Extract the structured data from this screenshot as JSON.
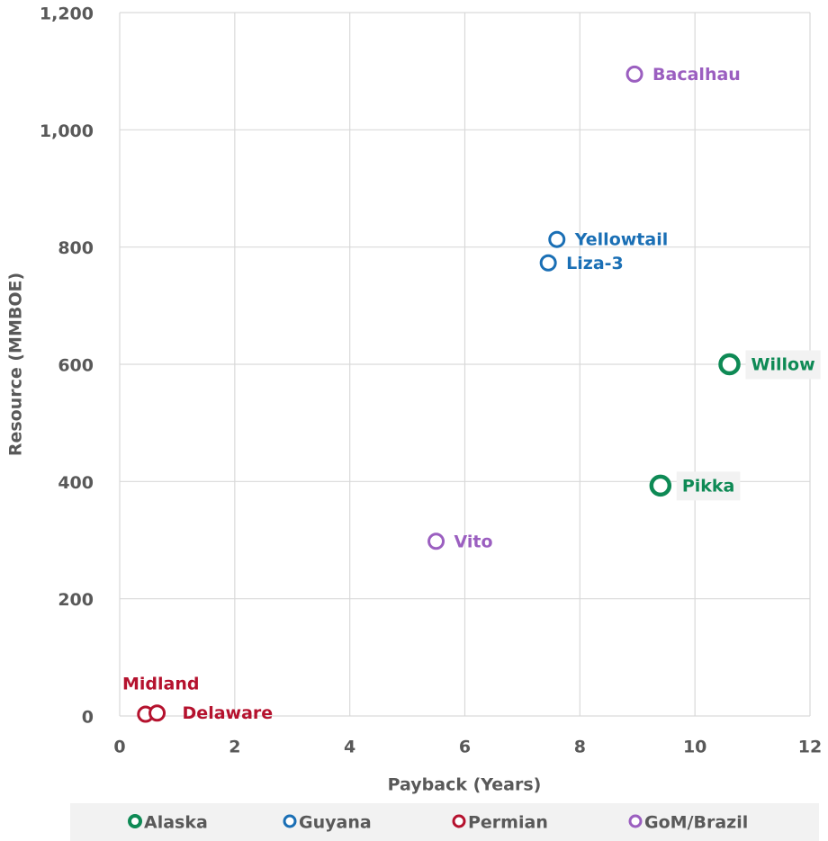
{
  "chart_data": {
    "type": "scatter",
    "x_label": "Payback (Years)",
    "y_label": "Resource (MMBOE)",
    "xlim": [
      0,
      12
    ],
    "xticks": [
      0,
      2,
      4,
      6,
      8,
      10,
      12
    ],
    "ylim": [
      0,
      1200
    ],
    "yticks": [
      0,
      200,
      400,
      600,
      800,
      {
        "value": 1000,
        "label": "1,000"
      },
      {
        "value": 1200,
        "label": "1,200"
      }
    ],
    "grid": true,
    "legend": "bottom",
    "series": [
      {
        "name": "Alaska",
        "color": "#0e8a55",
        "x": [
          10.6,
          9.4
        ],
        "values": [
          600,
          393
        ],
        "labels": [
          "Willow",
          "Pikka"
        ]
      },
      {
        "name": "Guyana",
        "color": "#1a6fb5",
        "x": [
          7.6,
          7.45
        ],
        "values": [
          813,
          773
        ],
        "labels": [
          "Yellowtail",
          "Liza-3"
        ]
      },
      {
        "name": "Permian",
        "color": "#b5122e",
        "x": [
          0.45,
          0.65
        ],
        "values": [
          3,
          5
        ],
        "labels": [
          "Midland",
          "Delaware"
        ]
      },
      {
        "name": "GoM/Brazil",
        "color": "#9b5fc0",
        "x": [
          8.95,
          5.5
        ],
        "values": [
          1095,
          298
        ],
        "labels": [
          "Bacalhau",
          "Vito"
        ]
      }
    ]
  }
}
